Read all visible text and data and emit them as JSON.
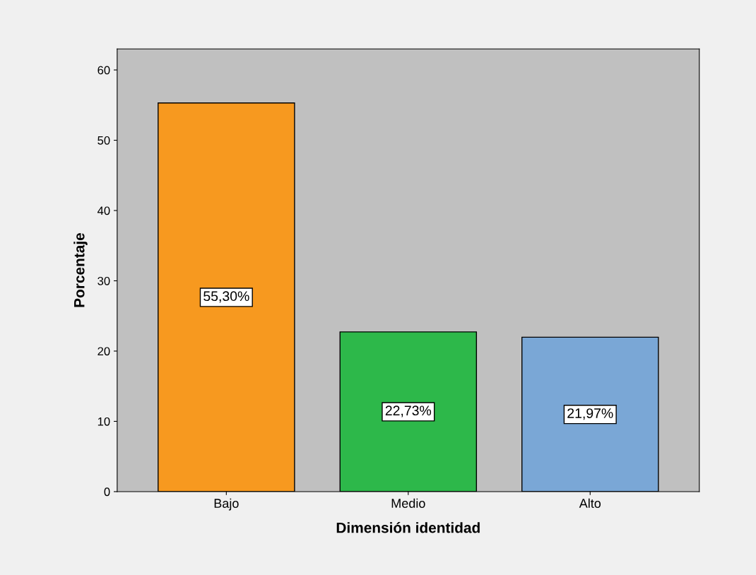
{
  "chart_data": {
    "type": "bar",
    "xlabel": "Dimensión identidad",
    "ylabel": "Porcentaje",
    "categories": [
      "Bajo",
      "Medio",
      "Alto"
    ],
    "values": [
      55.3,
      22.73,
      21.97
    ],
    "colors": [
      "#f7991f",
      "#2db84a",
      "#7aa7d6"
    ],
    "value_labels": [
      "55,30%",
      "22,73%",
      "21,97%"
    ],
    "ylim": [
      0,
      63
    ],
    "yticks": [
      0,
      10,
      20,
      30,
      40,
      50,
      60
    ],
    "grid": false
  }
}
